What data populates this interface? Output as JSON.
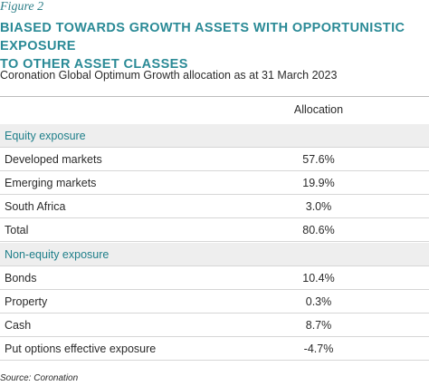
{
  "figure_label": "Figure 2",
  "title_line1": "BIASED TOWARDS GROWTH ASSETS WITH OPPORTUNISTIC EXPOSURE",
  "title_line2": "TO OTHER ASSET CLASSES",
  "subtitle": "Coronation Global Optimum Growth allocation as at 31 March 2023",
  "table": {
    "column_header": "Allocation",
    "sections": [
      {
        "heading": "Equity exposure",
        "rows": [
          {
            "label": "Developed markets",
            "value": "57.6%"
          },
          {
            "label": "Emerging markets",
            "value": "19.9%"
          },
          {
            "label": "South Africa",
            "value": "3.0%"
          },
          {
            "label": "Total",
            "value": "80.6%"
          }
        ]
      },
      {
        "heading": "Non-equity exposure",
        "rows": [
          {
            "label": "Bonds",
            "value": "10.4%"
          },
          {
            "label": "Property",
            "value": "0.3%"
          },
          {
            "label": "Cash",
            "value": "8.7%"
          },
          {
            "label": "Put options effective exposure",
            "value": "-4.7%"
          }
        ]
      }
    ]
  },
  "source": "Source: Coronation",
  "colors": {
    "title": "#2a8a96",
    "section_heading": "#1f7f8a",
    "section_background": "#eeeeee"
  }
}
